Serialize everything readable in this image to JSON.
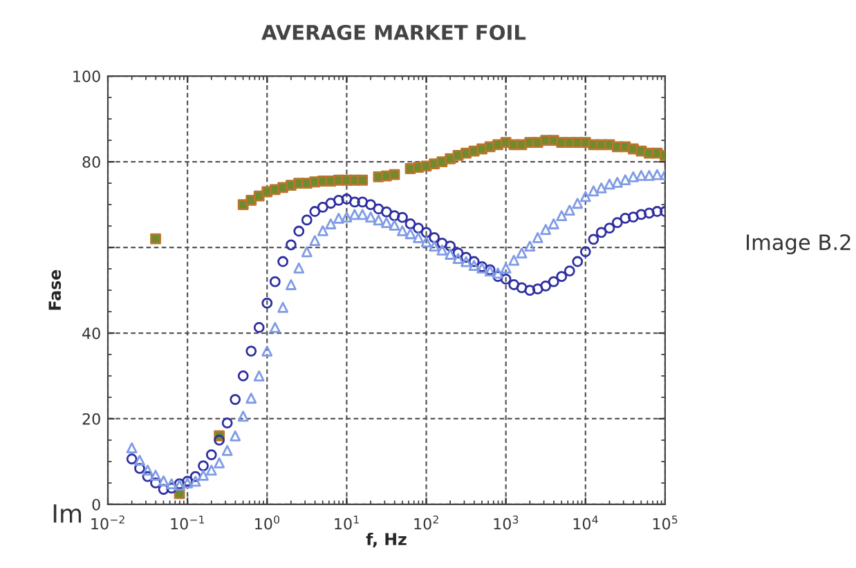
{
  "chart_data": {
    "type": "scatter",
    "title": "AVERAGE MARKET FOIL",
    "xlabel": "f, Hz",
    "ylabel": "Fase",
    "log": "x",
    "grid": true,
    "annotations": [
      "Image B.2",
      "Im"
    ],
    "xlim": [
      0.01,
      100000
    ],
    "ylim": [
      0,
      100
    ],
    "xticks": [
      {
        "value": 0.01,
        "label": "10$^{−2}$"
      },
      {
        "value": 0.1,
        "label": "10$^{−1}$"
      },
      {
        "value": 1,
        "label": "10$^{0}$"
      },
      {
        "value": 10,
        "label": "10$^{1}$"
      },
      {
        "value": 100,
        "label": "10$^{2}$"
      },
      {
        "value": 1000,
        "label": "10$^{3}$"
      },
      {
        "value": 10000,
        "label": "10$^{4}$"
      },
      {
        "value": 100000,
        "label": "10$^{5}$"
      }
    ],
    "yticks": [
      0,
      20,
      40,
      {
        "value": 60,
        "label": null
      },
      80,
      100
    ],
    "x": [
      0.02,
      0.0251,
      0.0316,
      0.0398,
      0.0501,
      0.0631,
      0.0794,
      0.1,
      0.126,
      0.158,
      0.2,
      0.251,
      0.316,
      0.398,
      0.501,
      0.631,
      0.794,
      1,
      1.26,
      1.58,
      2,
      2.51,
      3.16,
      3.98,
      5.01,
      6.31,
      7.94,
      10,
      12.6,
      15.8,
      20,
      25.1,
      31.6,
      39.8,
      50.1,
      63.1,
      79.4,
      100,
      126,
      158,
      200,
      251,
      316,
      398,
      501,
      631,
      794,
      1000,
      1260,
      1580,
      2000,
      2510,
      3160,
      3980,
      5010,
      6310,
      7940,
      10000,
      12600,
      15800,
      20000,
      25100,
      31600,
      39800,
      50100,
      63100,
      79400,
      100000
    ],
    "series": [
      {
        "marker": "square",
        "color": "#6e8b2e",
        "values": [
          null,
          null,
          null,
          62,
          null,
          null,
          2.5,
          null,
          null,
          null,
          null,
          16,
          null,
          null,
          70,
          71,
          72,
          73,
          73.5,
          74,
          74.5,
          75,
          75,
          75.3,
          75.5,
          75.5,
          75.7,
          75.7,
          75.7,
          75.7,
          null,
          76.5,
          76.7,
          77,
          null,
          78.4,
          78.7,
          79,
          79.5,
          80,
          80.7,
          81.5,
          82,
          82.5,
          83,
          83.5,
          84,
          84.5,
          84,
          84,
          84.5,
          84.5,
          85,
          85,
          84.5,
          84.5,
          84.5,
          84.5,
          84,
          84,
          84,
          83.5,
          83.5,
          83,
          82.5,
          82,
          82,
          81.5
        ]
      },
      {
        "marker": "circle",
        "color": "#2e2ea0",
        "values": [
          10.6,
          8.4,
          6.5,
          5,
          3.5,
          3.8,
          4.8,
          5.4,
          6.5,
          9,
          11.6,
          15,
          19,
          24.5,
          30,
          35.8,
          41.3,
          47,
          52,
          56.7,
          60.6,
          63.8,
          66.4,
          68.4,
          69.4,
          70.3,
          71,
          71.3,
          70.6,
          70.6,
          70,
          69,
          68.3,
          67.4,
          67,
          65.5,
          64.5,
          63.5,
          62.3,
          61,
          60.3,
          58.7,
          57.7,
          56.7,
          55.5,
          54.8,
          53.2,
          52.6,
          51.3,
          50.6,
          50,
          50.3,
          51,
          52,
          53.2,
          54.5,
          56.7,
          59,
          61.9,
          63.5,
          64.5,
          65.8,
          66.8,
          67.1,
          67.7,
          68,
          68.4,
          68.4
        ]
      },
      {
        "marker": "triangle",
        "color": "#7f9be6",
        "values": [
          13.2,
          10.3,
          8,
          6.8,
          5.5,
          4.8,
          4.5,
          5,
          5.4,
          6.8,
          8,
          9.7,
          12.6,
          16,
          20.6,
          24.8,
          30,
          35.8,
          41.3,
          46,
          51.3,
          55.2,
          59,
          61.6,
          63.9,
          65.5,
          66.8,
          67.1,
          67.7,
          67.7,
          67.1,
          66.4,
          65.8,
          65.2,
          63.9,
          63.2,
          62.3,
          61.3,
          60.3,
          59.4,
          58.4,
          57.4,
          56.7,
          55.8,
          55.2,
          54.5,
          54,
          55.2,
          57,
          58.7,
          60.3,
          62.3,
          64.2,
          65.5,
          67.4,
          68.7,
          70.3,
          71.9,
          73.2,
          73.9,
          74.8,
          75.2,
          75.8,
          76.5,
          76.8,
          76.8,
          77,
          77
        ]
      }
    ]
  }
}
